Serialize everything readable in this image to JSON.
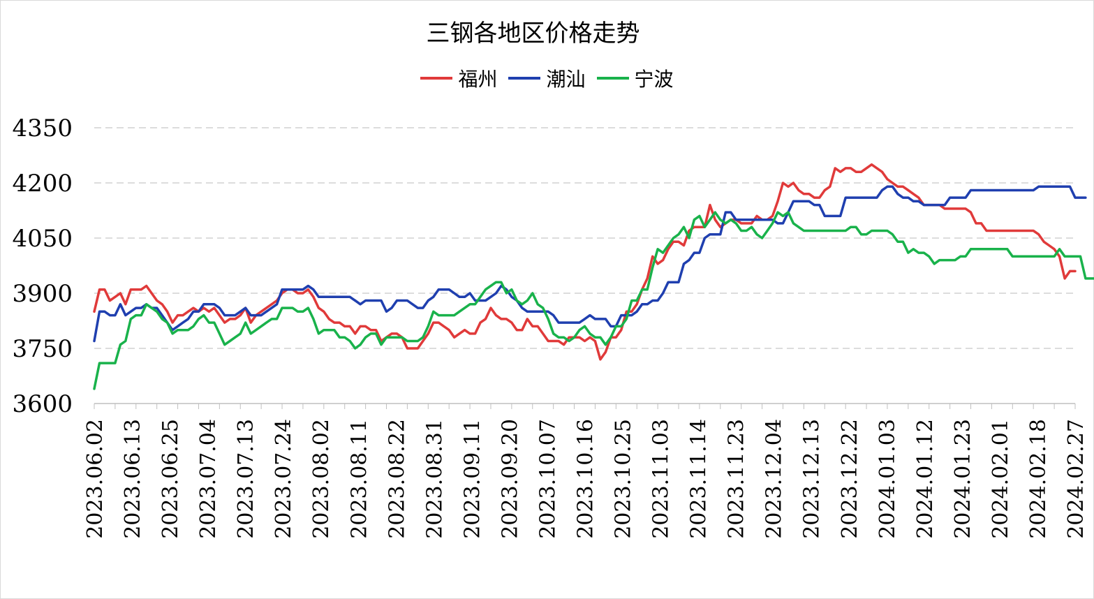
{
  "chart_data": {
    "type": "line",
    "title": "三钢各地区价格走势",
    "ylim": [
      3600,
      4350
    ],
    "yticks": [
      3600,
      3750,
      3900,
      4050,
      4200,
      4350
    ],
    "grid": "horizontal dashed",
    "legend_position": "top",
    "xtick_labels": [
      "2023.06.02",
      "2023.06.13",
      "2023.06.25",
      "2023.07.04",
      "2023.07.13",
      "2023.07.24",
      "2023.08.02",
      "2023.08.11",
      "2023.08.22",
      "2023.08.31",
      "2023.09.11",
      "2023.09.20",
      "2023.10.07",
      "2023.10.16",
      "2023.10.25",
      "2023.11.03",
      "2023.11.14",
      "2023.11.23",
      "2023.12.04",
      "2023.12.13",
      "2023.12.22",
      "2024.01.03",
      "2024.01.12",
      "2024.01.23",
      "2024.02.01",
      "2024.02.18",
      "2024.02.27"
    ],
    "series": [
      {
        "name": "福州",
        "color": "#e03a3a",
        "values": [
          3850,
          3910,
          3910,
          3880,
          3890,
          3900,
          3870,
          3910,
          3910,
          3910,
          3920,
          3900,
          3880,
          3870,
          3850,
          3820,
          3840,
          3840,
          3850,
          3860,
          3850,
          3860,
          3850,
          3860,
          3840,
          3820,
          3830,
          3830,
          3840,
          3860,
          3820,
          3840,
          3850,
          3860,
          3870,
          3880,
          3900,
          3910,
          3910,
          3900,
          3900,
          3910,
          3890,
          3860,
          3850,
          3830,
          3820,
          3820,
          3810,
          3810,
          3790,
          3810,
          3810,
          3800,
          3800,
          3770,
          3780,
          3790,
          3790,
          3780,
          3750,
          3750,
          3750,
          3770,
          3790,
          3820,
          3820,
          3810,
          3800,
          3780,
          3790,
          3800,
          3790,
          3790,
          3820,
          3830,
          3860,
          3840,
          3830,
          3830,
          3820,
          3800,
          3800,
          3830,
          3810,
          3810,
          3790,
          3770,
          3770,
          3770,
          3760,
          3780,
          3780,
          3780,
          3770,
          3780,
          3770,
          3720,
          3740,
          3780,
          3780,
          3800,
          3850,
          3850,
          3870,
          3910,
          3940,
          4000,
          3980,
          3990,
          4020,
          4040,
          4040,
          4030,
          4070,
          4080,
          4080,
          4080,
          4140,
          4100,
          4080,
          4090,
          4100,
          4100,
          4090,
          4090,
          4090,
          4110,
          4100,
          4100,
          4110,
          4150,
          4200,
          4190,
          4200,
          4180,
          4170,
          4170,
          4160,
          4160,
          4180,
          4190,
          4240,
          4230,
          4240,
          4240,
          4230,
          4230,
          4240,
          4250,
          4240,
          4230,
          4210,
          4200,
          4190,
          4190,
          4180,
          4170,
          4160,
          4140,
          4140,
          4140,
          4140,
          4130,
          4130,
          4130,
          4130,
          4130,
          4120,
          4090,
          4090,
          4070,
          4070,
          4070,
          4070,
          4070,
          4070,
          4070,
          4070,
          4070,
          4070,
          4060,
          4040,
          4030,
          4020,
          4000,
          3940,
          3960,
          3960
        ]
      },
      {
        "name": "潮汕",
        "color": "#1f3faf",
        "values": [
          3770,
          3850,
          3850,
          3840,
          3840,
          3870,
          3840,
          3850,
          3860,
          3860,
          3870,
          3860,
          3860,
          3840,
          3820,
          3800,
          3810,
          3820,
          3830,
          3850,
          3850,
          3870,
          3870,
          3870,
          3860,
          3840,
          3840,
          3840,
          3850,
          3860,
          3840,
          3840,
          3840,
          3850,
          3860,
          3870,
          3910,
          3910,
          3910,
          3910,
          3910,
          3920,
          3910,
          3890,
          3890,
          3890,
          3890,
          3890,
          3890,
          3890,
          3880,
          3870,
          3880,
          3880,
          3880,
          3880,
          3850,
          3860,
          3880,
          3880,
          3880,
          3870,
          3860,
          3860,
          3880,
          3890,
          3910,
          3910,
          3910,
          3900,
          3890,
          3890,
          3900,
          3880,
          3880,
          3880,
          3890,
          3900,
          3920,
          3910,
          3890,
          3880,
          3860,
          3850,
          3850,
          3850,
          3850,
          3850,
          3840,
          3820,
          3820,
          3820,
          3820,
          3820,
          3830,
          3840,
          3830,
          3830,
          3830,
          3810,
          3810,
          3840,
          3840,
          3840,
          3850,
          3870,
          3870,
          3880,
          3880,
          3900,
          3930,
          3930,
          3930,
          3980,
          3990,
          4010,
          4010,
          4050,
          4060,
          4060,
          4060,
          4120,
          4120,
          4100,
          4100,
          4100,
          4100,
          4100,
          4100,
          4100,
          4100,
          4090,
          4090,
          4120,
          4150,
          4150,
          4150,
          4150,
          4140,
          4140,
          4110,
          4110,
          4110,
          4110,
          4160,
          4160,
          4160,
          4160,
          4160,
          4160,
          4160,
          4180,
          4190,
          4190,
          4170,
          4160,
          4160,
          4150,
          4150,
          4140,
          4140,
          4140,
          4140,
          4140,
          4160,
          4160,
          4160,
          4160,
          4180,
          4180,
          4180,
          4180,
          4180,
          4180,
          4180,
          4180,
          4180,
          4180,
          4180,
          4180,
          4180,
          4190,
          4190,
          4190,
          4190,
          4190,
          4190,
          4190,
          4160,
          4160,
          4160
        ]
      },
      {
        "name": "宁波",
        "color": "#19b24b",
        "values": [
          3640,
          3710,
          3710,
          3710,
          3710,
          3760,
          3770,
          3830,
          3840,
          3840,
          3870,
          3860,
          3850,
          3830,
          3820,
          3790,
          3800,
          3800,
          3800,
          3810,
          3830,
          3840,
          3820,
          3820,
          3790,
          3760,
          3770,
          3780,
          3790,
          3820,
          3790,
          3800,
          3810,
          3820,
          3830,
          3830,
          3860,
          3860,
          3860,
          3850,
          3850,
          3860,
          3830,
          3790,
          3800,
          3800,
          3800,
          3780,
          3780,
          3770,
          3750,
          3760,
          3780,
          3790,
          3790,
          3760,
          3780,
          3780,
          3780,
          3780,
          3770,
          3770,
          3770,
          3780,
          3810,
          3850,
          3840,
          3840,
          3840,
          3840,
          3850,
          3860,
          3870,
          3870,
          3890,
          3910,
          3920,
          3930,
          3930,
          3900,
          3910,
          3880,
          3870,
          3880,
          3900,
          3870,
          3860,
          3830,
          3790,
          3780,
          3780,
          3770,
          3780,
          3800,
          3810,
          3790,
          3780,
          3780,
          3760,
          3780,
          3810,
          3810,
          3830,
          3880,
          3880,
          3910,
          3910,
          3970,
          4020,
          4010,
          4030,
          4050,
          4060,
          4080,
          4050,
          4100,
          4110,
          4080,
          4100,
          4120,
          4100,
          4090,
          4100,
          4090,
          4070,
          4070,
          4080,
          4060,
          4050,
          4070,
          4090,
          4120,
          4110,
          4120,
          4090,
          4080,
          4070,
          4070,
          4070,
          4070,
          4070,
          4070,
          4070,
          4070,
          4070,
          4080,
          4080,
          4060,
          4060,
          4070,
          4070,
          4070,
          4070,
          4060,
          4040,
          4040,
          4010,
          4020,
          4010,
          4010,
          4000,
          3980,
          3990,
          3990,
          3990,
          3990,
          4000,
          4000,
          4020,
          4020,
          4020,
          4020,
          4020,
          4020,
          4020,
          4020,
          4000,
          4000,
          4000,
          4000,
          4000,
          4000,
          4000,
          4000,
          4000,
          4020,
          4000,
          4000,
          4000,
          4000,
          3940,
          3940,
          3940
        ]
      }
    ]
  }
}
